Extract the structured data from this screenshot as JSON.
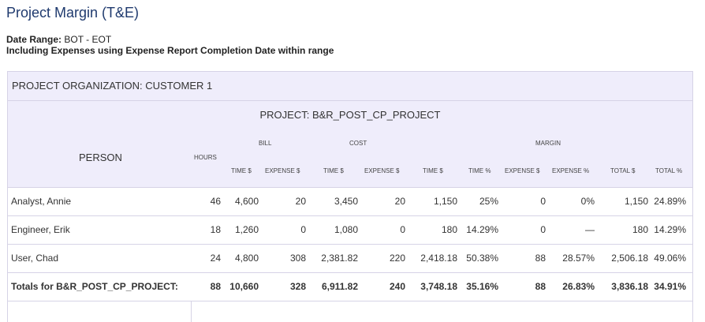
{
  "page": {
    "title": "Project Margin (T&E)",
    "date_range_label": "Date Range:",
    "date_range_value": "BOT - EOT",
    "expenses_note": "Including Expenses using Expense Report Completion Date within range"
  },
  "report": {
    "org_label": "PROJECT ORGANIZATION:  CUSTOMER 1",
    "project_label": "PROJECT:  B&R_POST_CP_PROJECT",
    "headers": {
      "person": "PERSON",
      "hours": "HOURS",
      "bill": "BILL",
      "cost": "COST",
      "margin": "MARGIN",
      "bill_time": "TIME $",
      "bill_expense": "EXPENSE $",
      "cost_time": "TIME $",
      "cost_expense": "EXPENSE $",
      "margin_time": "TIME $",
      "margin_time_pct": "TIME %",
      "margin_expense": "EXPENSE $",
      "margin_expense_pct": "EXPENSE %",
      "margin_total": "TOTAL $",
      "margin_total_pct": "TOTAL %"
    },
    "rows": [
      [
        "Analyst, Annie",
        "46",
        "4,600",
        "20",
        "3,450",
        "20",
        "1,150",
        "25%",
        "0",
        "0%",
        "1,150",
        "24.89%"
      ],
      [
        "Engineer, Erik",
        "18",
        "1,260",
        "0",
        "1,080",
        "0",
        "180",
        "14.29%",
        "0",
        "—",
        "180",
        "14.29%"
      ],
      [
        "User, Chad",
        "24",
        "4,800",
        "308",
        "2,381.82",
        "220",
        "2,418.18",
        "50.38%",
        "88",
        "28.57%",
        "2,506.18",
        "49.06%"
      ]
    ],
    "totals": [
      "Totals for B&R_POST_CP_PROJECT:",
      "88",
      "10,660",
      "328",
      "6,911.82",
      "240",
      "3,748.18",
      "35.16%",
      "88",
      "26.83%",
      "3,836.18",
      "34.91%"
    ]
  }
}
